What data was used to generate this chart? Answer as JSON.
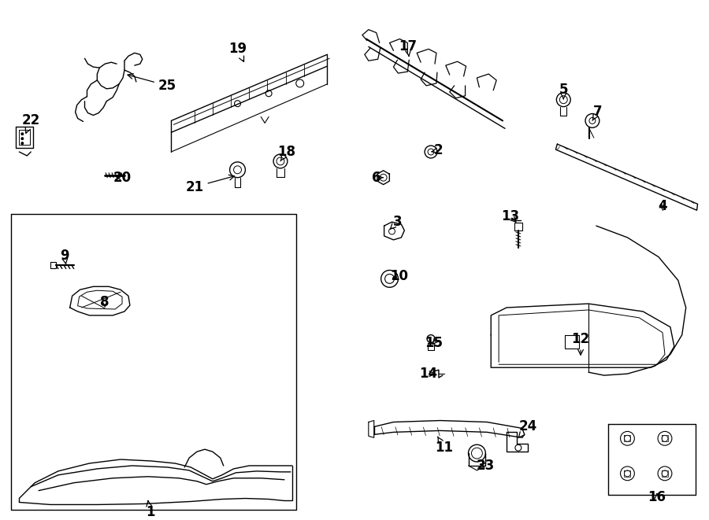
{
  "bg_color": "#ffffff",
  "line_color": "#000000",
  "lw": 1.0,
  "font_size": 12
}
